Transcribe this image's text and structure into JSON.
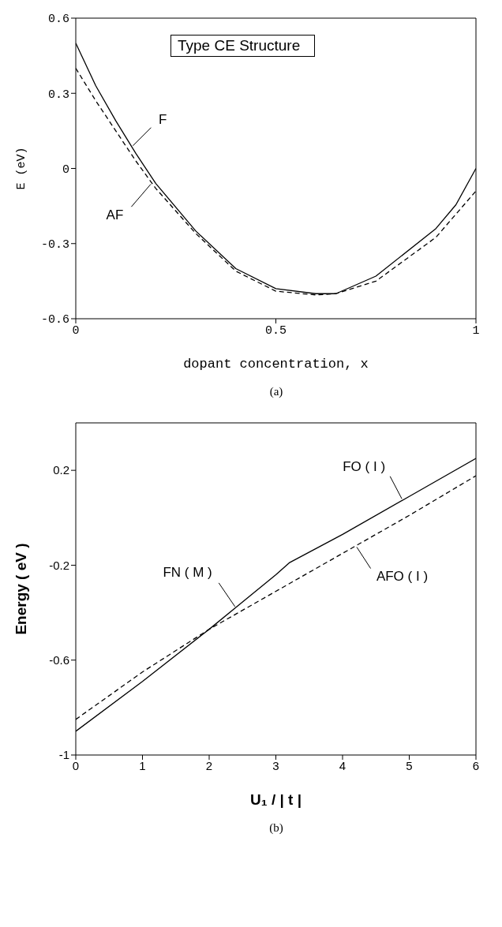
{
  "chart_data": [
    {
      "type": "line",
      "xlabel": "dopant concentration, x",
      "ylabel": "E (eV)",
      "xlim": [
        0,
        1
      ],
      "xticks": [
        0,
        0.5,
        1
      ],
      "ylim": [
        -0.6,
        0.6
      ],
      "yticks": [
        -0.6,
        -0.3,
        0,
        0.3,
        0.6
      ],
      "marker": "none",
      "annotations": [
        "Type CE Structure",
        "(a)"
      ],
      "series": [
        {
          "name": "F",
          "color": "#000000",
          "line_style": "solid",
          "x": [
            0,
            0.05,
            0.1,
            0.15,
            0.2,
            0.3,
            0.4,
            0.5,
            0.6,
            0.65,
            0.75,
            0.9,
            0.95,
            1
          ],
          "values": [
            0.5,
            0.33,
            0.19,
            0.06,
            -0.06,
            -0.25,
            -0.4,
            -0.48,
            -0.5,
            -0.5,
            -0.43,
            -0.24,
            -0.145,
            0
          ]
        },
        {
          "name": "AF",
          "color": "#000000",
          "line_style": "dashed",
          "x": [
            0,
            0.05,
            0.1,
            0.15,
            0.2,
            0.3,
            0.4,
            0.5,
            0.6,
            0.65,
            0.75,
            0.9,
            1
          ],
          "values": [
            0.4,
            0.27,
            0.15,
            0.03,
            -0.08,
            -0.26,
            -0.41,
            -0.49,
            -0.505,
            -0.5,
            -0.45,
            -0.275,
            -0.09
          ]
        }
      ]
    },
    {
      "type": "line",
      "xlabel": "U₁ / | t |",
      "ylabel": "Energy ( eV )",
      "xlim": [
        0,
        6
      ],
      "xticks": [
        0,
        1,
        2,
        3,
        4,
        5,
        6
      ],
      "ylim": [
        -1,
        0.4
      ],
      "yticks": [
        -1,
        -0.6,
        -0.2,
        0.2
      ],
      "marker": "none",
      "annotations": [
        {
          "text": "FN ( M )",
          "x": 2.4,
          "y": -0.38
        },
        {
          "text": "FO ( I )",
          "x": 4.9,
          "y": 0.074
        },
        "(b)"
      ],
      "series": [
        {
          "color": "#000000",
          "line_style": "solid",
          "x": [
            0,
            1,
            2,
            3,
            3.2,
            4,
            5,
            6
          ],
          "values": [
            -0.9,
            -0.69,
            -0.47,
            -0.24,
            -0.19,
            -0.07,
            0.09,
            0.25
          ]
        },
        {
          "name": "AFO ( I )",
          "color": "#000000",
          "line_style": "dashed",
          "x": [
            0,
            1,
            2,
            3,
            4,
            5,
            6
          ],
          "values": [
            -0.85,
            -0.65,
            -0.47,
            -0.31,
            -0.15,
            0.01,
            0.177
          ]
        }
      ]
    }
  ]
}
